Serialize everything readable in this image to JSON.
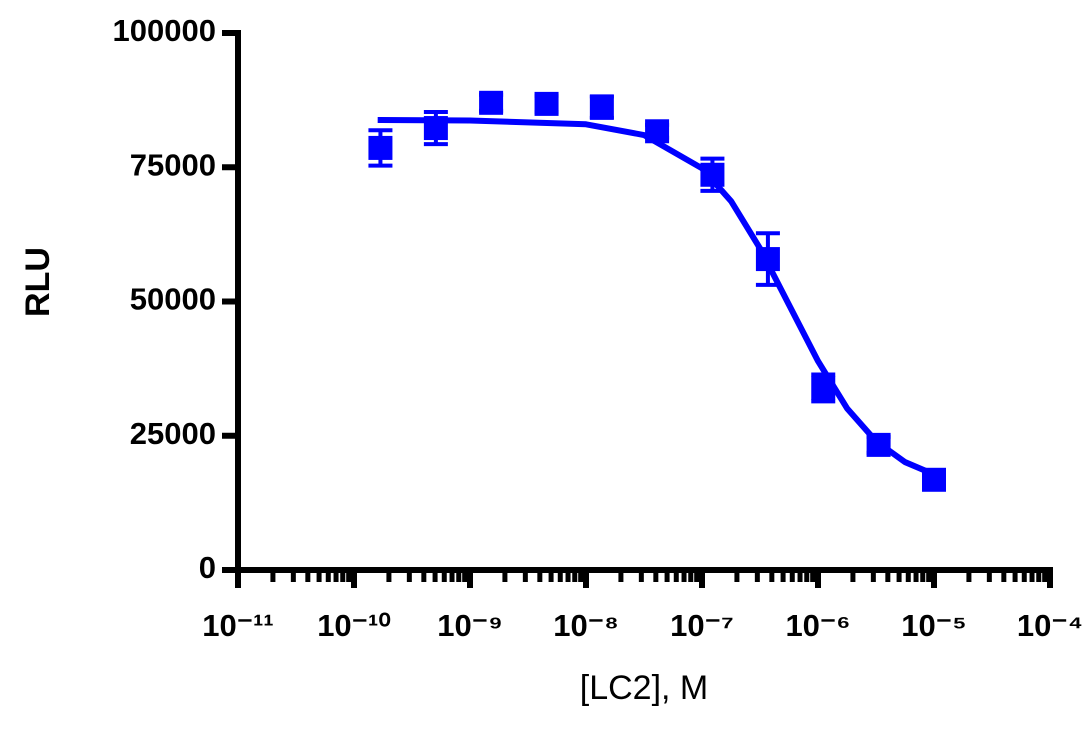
{
  "chart_data": {
    "type": "scatter",
    "xlabel": "[LC2], M",
    "ylabel": "RLU",
    "xscale": "log",
    "xlim": [
      1e-11,
      0.0001
    ],
    "xticks": [
      {
        "value": 1e-11,
        "label": "10⁻¹¹"
      },
      {
        "value": 1e-10,
        "label": "10⁻¹⁰"
      },
      {
        "value": 1e-09,
        "label": "10⁻⁹"
      },
      {
        "value": 1e-08,
        "label": "10⁻⁸"
      },
      {
        "value": 1e-07,
        "label": "10⁻⁷"
      },
      {
        "value": 1e-06,
        "label": "10⁻⁶"
      },
      {
        "value": 1e-05,
        "label": "10⁻⁵"
      },
      {
        "value": 0.0001,
        "label": "10⁻⁴"
      }
    ],
    "minor_ticks": true,
    "ylim": [
      0,
      100000
    ],
    "yticks": [
      0,
      25000,
      50000,
      75000,
      100000
    ],
    "color": "#0000ff",
    "x": [
      1.69e-10,
      5.08e-10,
      1.52e-09,
      4.57e-09,
      1.37e-08,
      4.1e-08,
      1.23e-07,
      3.7e-07,
      1.11e-06,
      3.33e-06,
      1e-05
    ],
    "values": [
      78600,
      82300,
      87000,
      86800,
      86200,
      81700,
      73600,
      57900,
      33900,
      23300,
      16800
    ],
    "errors": [
      3300,
      3000,
      1500,
      1500,
      2000,
      1200,
      3000,
      4800,
      2500,
      1500,
      800
    ],
    "fit": {
      "x": [
        1.6e-10,
        1e-09,
        1e-08,
        3.16e-08,
        1e-07,
        1.78e-07,
        3.16e-07,
        5.62e-07,
        1e-06,
        1.78e-06,
        3.16e-06,
        5.62e-06,
        1e-05
      ],
      "values": [
        83800,
        83700,
        83000,
        81000,
        74800,
        68700,
        59900,
        49400,
        38900,
        30100,
        24000,
        20100,
        17800
      ]
    }
  }
}
